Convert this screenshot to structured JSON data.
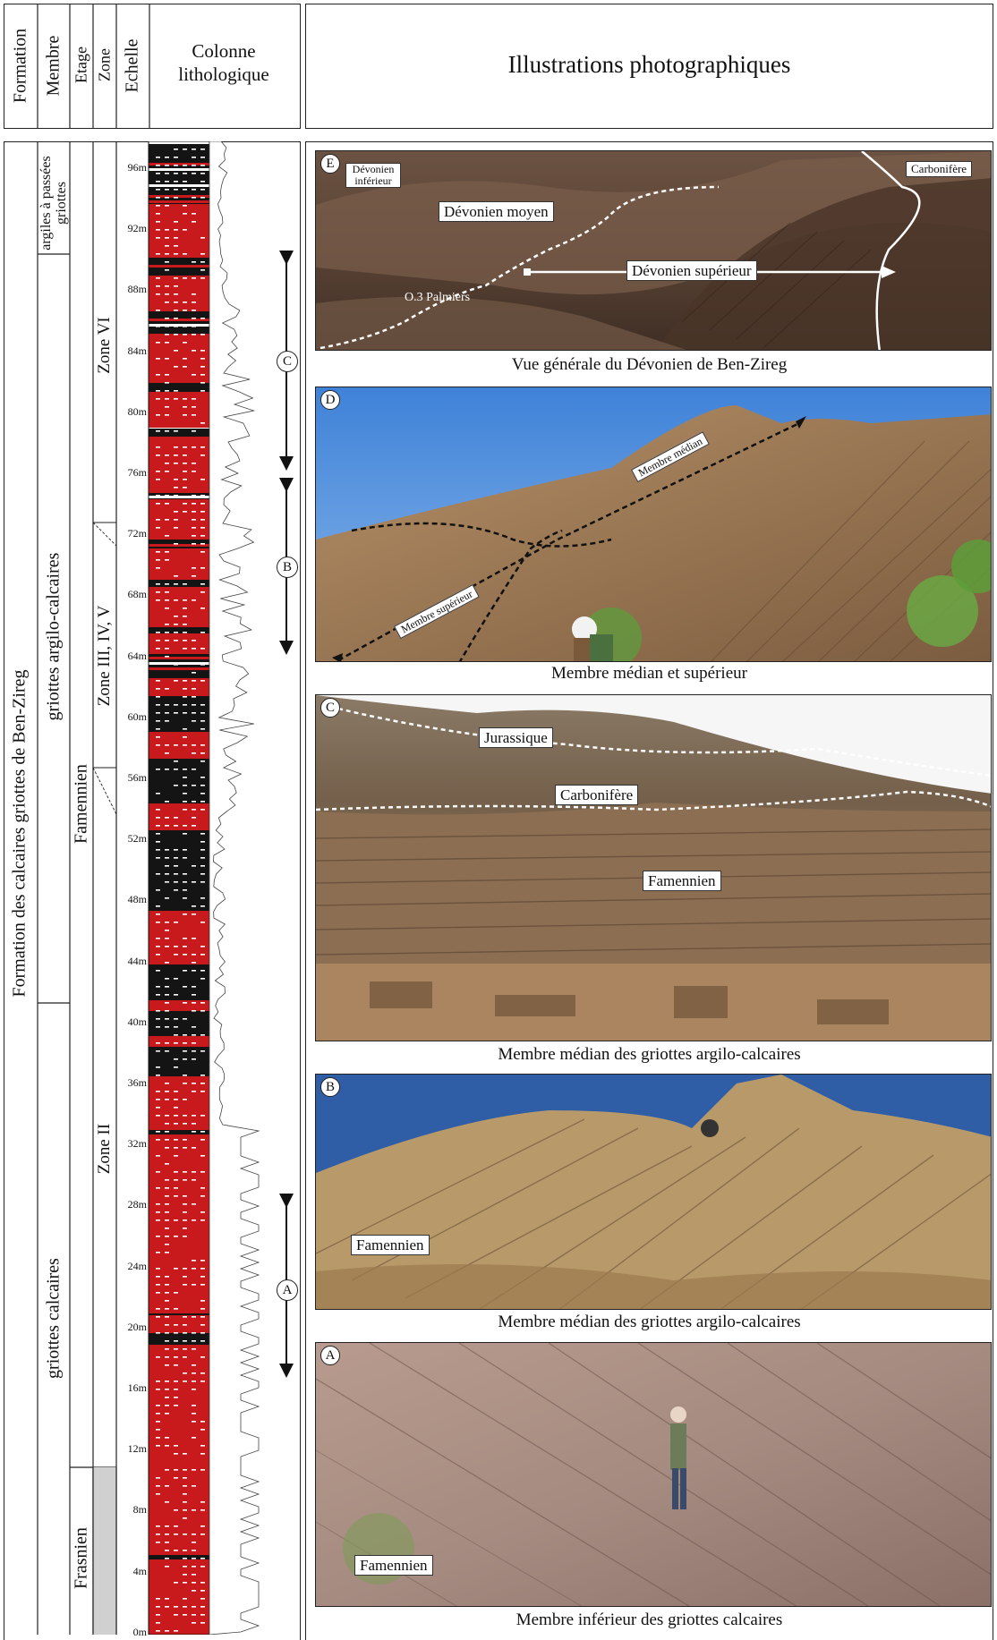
{
  "header": {
    "formation": "Formation",
    "membre": "Membre",
    "etage": "Etage",
    "zone": "Zone",
    "echelle": "Echelle",
    "colonne": "Colonne lithologique",
    "illustrations": "Illustrations photographiques"
  },
  "formation_label": "Formation des calcaires griottes de Ben-Zireg",
  "members": {
    "top": "argiles à passées griottes",
    "middle": "griottes argilo-calcaires",
    "lower": "griottes calcaires"
  },
  "stages": {
    "famennien": "Famennien",
    "frasnien": "Frasnien"
  },
  "zones": {
    "zone_vi": "Zone VI",
    "zone_iii_v": "Zone III, IV, V",
    "zone_ii": "Zone II"
  },
  "scale_ticks": [
    "96m",
    "92m",
    "88m",
    "84m",
    "80m",
    "76m",
    "72m",
    "68m",
    "64m",
    "60m",
    "56m",
    "52m",
    "48m",
    "44m",
    "40m",
    "36m",
    "32m",
    "28m",
    "24m",
    "20m",
    "16m",
    "12m",
    "8m",
    "4m",
    "0m"
  ],
  "column_markers": [
    "C",
    "B",
    "A"
  ],
  "photos": {
    "E": {
      "letter": "E",
      "labels": {
        "devonien_inferieur": "Dévonien inférieur",
        "carbonifere": "Carbonifère",
        "devonien_moyen": "Dévonien moyen",
        "devonien_superieur": "Dévonien supérieur",
        "palmiers": "O.3 Palmiers"
      },
      "caption": "Vue générale du Dévonien de Ben-Zireg"
    },
    "D": {
      "letter": "D",
      "labels": {
        "membre_median": "Membre médian",
        "membre_superieur": "Membre supérieur"
      },
      "caption": "Membre médian et supérieur"
    },
    "C": {
      "letter": "C",
      "labels": {
        "jurassique": "Jurassique",
        "carbonifere": "Carbonifère",
        "famennien": "Famennien"
      },
      "caption": "Membre médian des griottes argilo-calcaires"
    },
    "B": {
      "letter": "B",
      "labels": {
        "famennien": "Famennien"
      },
      "caption": "Membre médian des griottes argilo-calcaires"
    },
    "A": {
      "letter": "A",
      "labels": {
        "famennien": "Famennien"
      },
      "caption": "Membre inférieur des griottes calcaires"
    }
  },
  "colors": {
    "griotte_red": "#c8191d",
    "shale_black": "#141414",
    "frasnien_grey": "#d0d0d0"
  }
}
